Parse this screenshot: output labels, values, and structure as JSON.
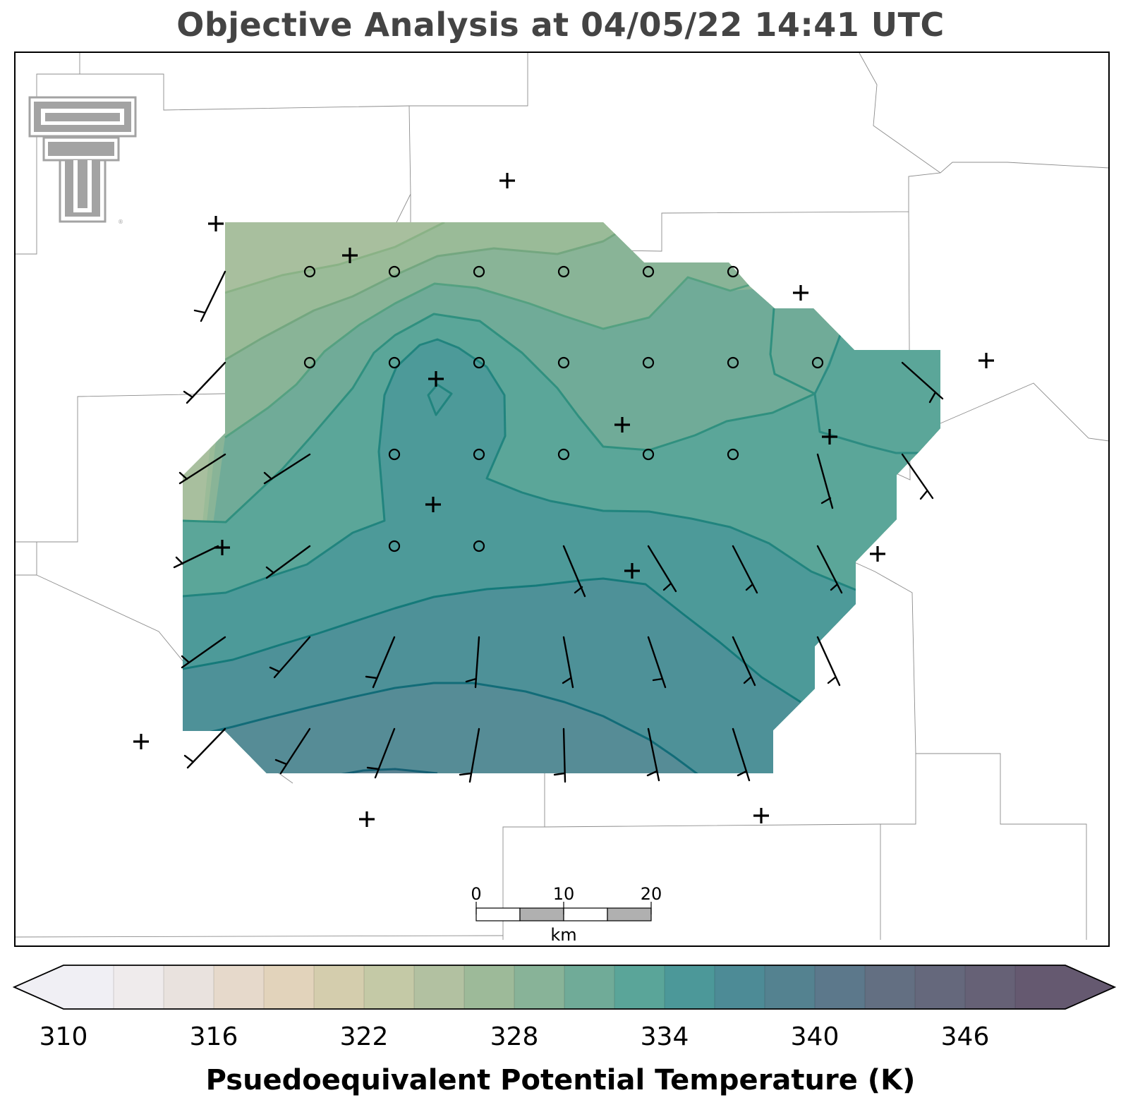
{
  "title": "Objective Analysis at 04/05/22 14:41 UTC",
  "colorbar": {
    "label": "Psuedoequivalent Potential Temperature (K)",
    "ticks": [
      "310",
      "316",
      "322",
      "328",
      "334",
      "340",
      "346"
    ],
    "min": 310,
    "max": 350,
    "step": 2,
    "colors": [
      "#f0eff4",
      "#efebec",
      "#e9e2de",
      "#e6d9cb",
      "#e2d3bb",
      "#d4cdad",
      "#c4c9a6",
      "#b2c1a1",
      "#9dba99",
      "#88b398",
      "#70ab98",
      "#5aa599",
      "#4c9899",
      "#4d8b96",
      "#548290",
      "#5c788b",
      "#636f82",
      "#65687c",
      "#666176",
      "#655970"
    ],
    "extend": "both"
  },
  "scalebar": {
    "labels": [
      "0",
      "10",
      "20"
    ],
    "unit": "km"
  },
  "logo": "texas-tech-double-t-logo",
  "symbols": {
    "calm": "circle",
    "missing": "plus",
    "wind": "barb"
  },
  "colors": {
    "contour_line": "#1b7a74",
    "border": "#888888",
    "frame": "#000000"
  }
}
